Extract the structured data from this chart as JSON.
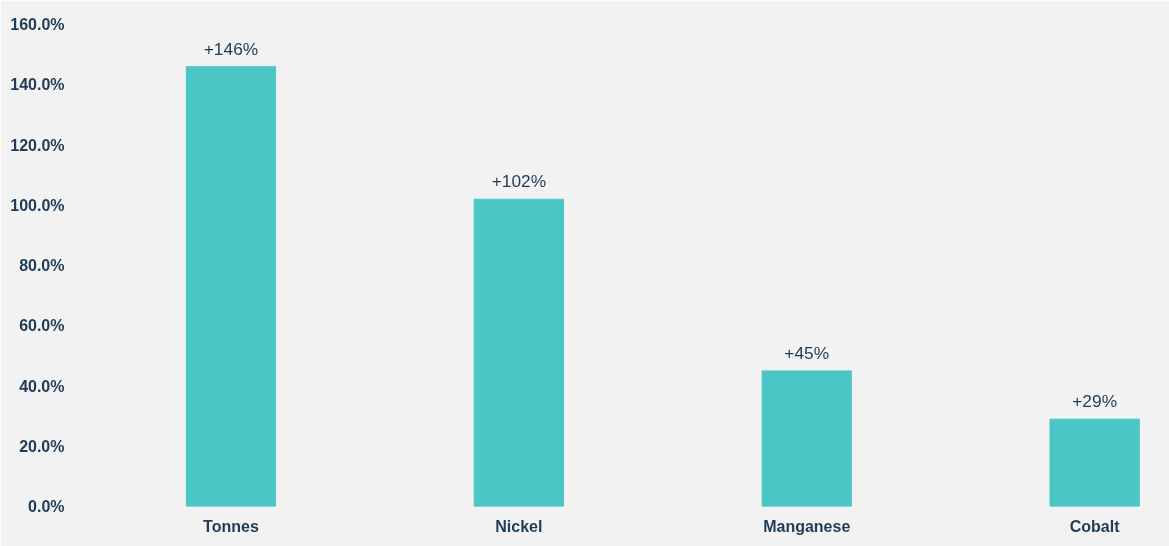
{
  "chart_data": {
    "type": "bar",
    "categories": [
      "Tonnes",
      "Nickel",
      "Manganese",
      "Cobalt"
    ],
    "values": [
      146,
      102,
      45,
      29
    ],
    "color": "#4bc6c6",
    "value_labels": [
      "+146%",
      "+102%",
      "+45%",
      "+29%"
    ],
    "ylim": [
      0,
      160
    ],
    "yticks": [
      {
        "value": 0,
        "label": "0.0%"
      },
      {
        "value": 20,
        "label": "20.0%"
      },
      {
        "value": 40,
        "label": "40.0%"
      },
      {
        "value": 60,
        "label": "60.0%"
      },
      {
        "value": 80,
        "label": "80.0%"
      },
      {
        "value": 100,
        "label": "100.0%"
      },
      {
        "value": 120,
        "label": "120.0%"
      },
      {
        "value": 140,
        "label": "140.0%"
      },
      {
        "value": 160,
        "label": "160.0%"
      }
    ],
    "grid": false
  }
}
